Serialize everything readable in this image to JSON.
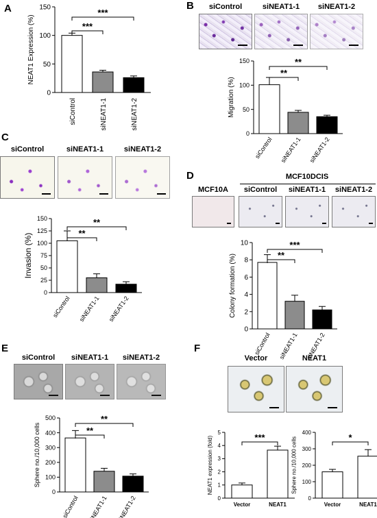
{
  "panels": {
    "A": "A",
    "B": "B",
    "C": "C",
    "D": "D",
    "E": "E",
    "F": "F"
  },
  "photos": {
    "B": [
      "siControl",
      "siNEAT1-1",
      "siNEAT1-2"
    ],
    "C": [
      "siControl",
      "siNEAT1-1",
      "siNEAT1-2"
    ],
    "D_group": "MCF10DCIS",
    "D": [
      "MCF10A",
      "siControl",
      "siNEAT1-1",
      "siNEAT1-2"
    ],
    "E": [
      "siControl",
      "siNEAT1-1",
      "siNEAT1-2"
    ],
    "F": [
      "Vector",
      "NEAT1"
    ]
  },
  "colors": {
    "control_bar": "#ffffff",
    "si1_bar": "#8c8c8c",
    "si2_bar": "#000000"
  },
  "chart_data": [
    {
      "id": "A",
      "type": "bar",
      "categories": [
        "siControl",
        "siNEAT1-1",
        "siNEAT1-2"
      ],
      "values": [
        100,
        36,
        26
      ],
      "errors": [
        4,
        3,
        3
      ],
      "ylabel": "NEAT1 Expression (%)",
      "ylim": [
        0,
        150
      ],
      "yticks": [
        "0",
        "50",
        "100",
        "150"
      ],
      "significance": [
        "***",
        "***"
      ]
    },
    {
      "id": "B",
      "type": "bar",
      "categories": [
        "siControl",
        "siNEAT1-1",
        "siNEAT1-2"
      ],
      "values": [
        101,
        44,
        35
      ],
      "errors": [
        15,
        4,
        3
      ],
      "ylabel": "Migration (%)",
      "ylim": [
        0,
        150
      ],
      "yticks": [
        "0",
        "50",
        "100",
        "150"
      ],
      "significance": [
        "**",
        "**"
      ]
    },
    {
      "id": "C",
      "type": "bar",
      "categories": [
        "siControl",
        "siNEAT1-1",
        "siNEAT1-2"
      ],
      "values": [
        105,
        30,
        17
      ],
      "errors": [
        20,
        8,
        5
      ],
      "ylabel": "Invasion (%)",
      "ylim": [
        0,
        150
      ],
      "yticks": [
        "0",
        "25",
        "50",
        "75",
        "100",
        "125",
        "150"
      ],
      "significance": [
        "**",
        "**"
      ]
    },
    {
      "id": "D",
      "type": "bar",
      "categories": [
        "siControl",
        "siNEAT1-1",
        "siNEAT1-2"
      ],
      "values": [
        7.7,
        3.2,
        2.2
      ],
      "errors": [
        0.9,
        0.7,
        0.4
      ],
      "ylabel": "Colony formation (%)",
      "ylim": [
        0,
        10
      ],
      "yticks": [
        "0",
        "2",
        "4",
        "6",
        "8",
        "10"
      ],
      "significance": [
        "**",
        "***"
      ]
    },
    {
      "id": "E",
      "type": "bar",
      "categories": [
        "siControl",
        "siNEAT1-1",
        "siNEAT1-2"
      ],
      "values": [
        365,
        140,
        107
      ],
      "errors": [
        50,
        20,
        15
      ],
      "ylabel": "Sphere no./10,000 cells",
      "ylim": [
        0,
        500
      ],
      "yticks": [
        "0",
        "100",
        "200",
        "300",
        "400",
        "500"
      ],
      "significance": [
        "**",
        "**"
      ]
    },
    {
      "id": "F1",
      "type": "bar",
      "categories": [
        "Vector",
        "NEAT1"
      ],
      "values": [
        1.0,
        3.65
      ],
      "errors": [
        0.15,
        0.3
      ],
      "ylabel": "NEAT1 expression (fold)",
      "ylim": [
        0,
        5
      ],
      "yticks": [
        "0",
        "1",
        "2",
        "3",
        "4",
        "5"
      ],
      "significance": [
        "***"
      ]
    },
    {
      "id": "F2",
      "type": "bar",
      "categories": [
        "Vector",
        "NEAT1"
      ],
      "values": [
        160,
        255
      ],
      "errors": [
        15,
        40
      ],
      "ylabel": "Sphere no./10,000 cells",
      "ylim": [
        0,
        400
      ],
      "yticks": [
        "0",
        "100",
        "200",
        "300",
        "400"
      ],
      "significance": [
        "*"
      ]
    }
  ]
}
